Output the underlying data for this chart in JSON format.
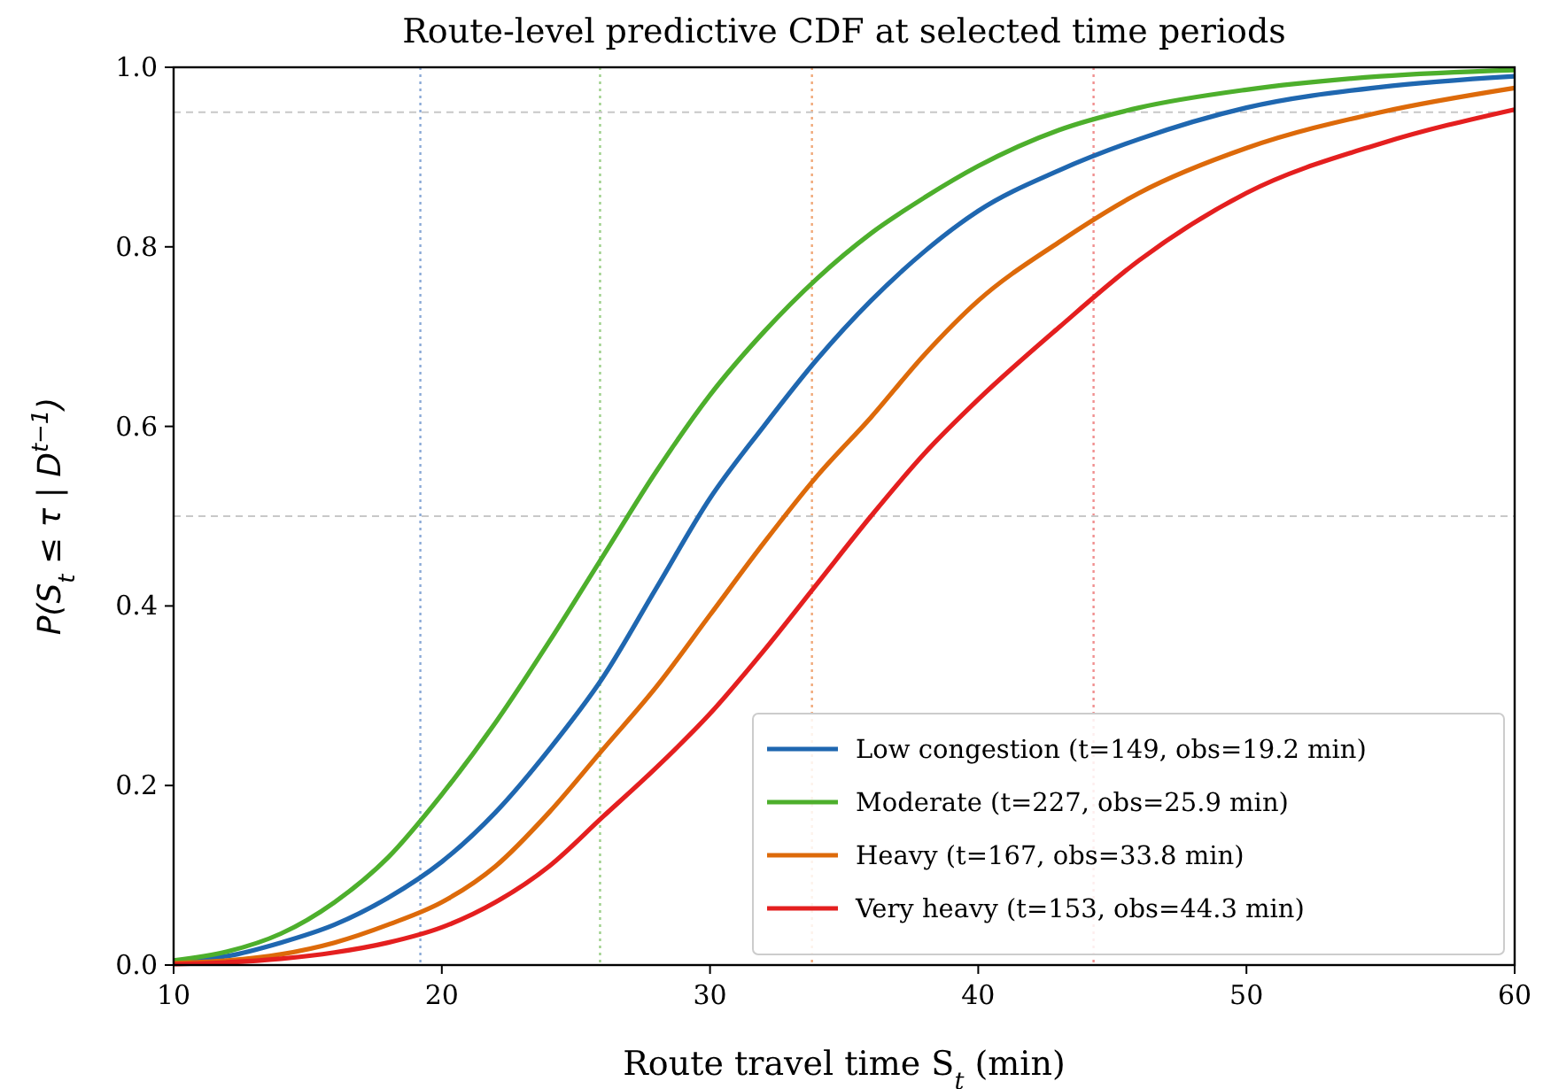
{
  "chart_data": {
    "type": "line",
    "title": "Route-level predictive CDF at selected time periods",
    "xlabel": "Route travel time S$_{t}$ (min)",
    "ylabel": "P(S$_{t}$ ≤ τ | D$^{t−1}$)",
    "xlim": [
      10,
      60
    ],
    "ylim": [
      0,
      1
    ],
    "xticks": [
      10,
      20,
      30,
      40,
      50,
      60
    ],
    "yticks": [
      {
        "value": 0,
        "label": "0.0"
      },
      {
        "value": 0.2,
        "label": "0.2"
      },
      {
        "value": 0.4,
        "label": "0.4"
      },
      {
        "value": 0.6,
        "label": "0.6"
      },
      {
        "value": 0.8,
        "label": "0.8"
      },
      {
        "value": 1,
        "label": "1.0"
      }
    ],
    "x": [
      10,
      12,
      14,
      16,
      18,
      20,
      22,
      24,
      26,
      28,
      30,
      32,
      34,
      36,
      38,
      40,
      43,
      46,
      50,
      55,
      60
    ],
    "series": [
      {
        "name": "Low congestion (t=149, obs=19.2 min)",
        "color": "#1f67b0",
        "values": [
          0.004,
          0.01,
          0.025,
          0.045,
          0.075,
          0.115,
          0.17,
          0.24,
          0.32,
          0.42,
          0.52,
          0.6,
          0.675,
          0.74,
          0.795,
          0.84,
          0.885,
          0.92,
          0.955,
          0.978,
          0.99
        ]
      },
      {
        "name": "Moderate (t=227, obs=25.9 min)",
        "color": "#4daf2c",
        "values": [
          0.005,
          0.015,
          0.035,
          0.07,
          0.12,
          0.19,
          0.27,
          0.36,
          0.455,
          0.55,
          0.635,
          0.705,
          0.765,
          0.815,
          0.855,
          0.89,
          0.93,
          0.955,
          0.975,
          0.99,
          0.997
        ]
      },
      {
        "name": "Heavy (t=167, obs=33.8 min)",
        "color": "#dd6a0a",
        "values": [
          0.002,
          0.005,
          0.012,
          0.025,
          0.045,
          0.07,
          0.11,
          0.17,
          0.24,
          0.31,
          0.39,
          0.47,
          0.545,
          0.61,
          0.68,
          0.74,
          0.805,
          0.86,
          0.91,
          0.95,
          0.977
        ]
      },
      {
        "name": "Very heavy (t=153, obs=44.3 min)",
        "color": "#e41f1f",
        "values": [
          0.001,
          0.003,
          0.007,
          0.014,
          0.025,
          0.042,
          0.07,
          0.11,
          0.165,
          0.22,
          0.28,
          0.35,
          0.425,
          0.5,
          0.57,
          0.63,
          0.71,
          0.785,
          0.86,
          0.915,
          0.953
        ]
      }
    ],
    "ref_lines": [
      {
        "axis": "x",
        "value": 19.2,
        "color": "#8aa9d6",
        "line_style": "dotted"
      },
      {
        "axis": "x",
        "value": 25.9,
        "color": "#9dd08a",
        "line_style": "dotted"
      },
      {
        "axis": "x",
        "value": 33.8,
        "color": "#f0a878",
        "line_style": "dotted"
      },
      {
        "axis": "x",
        "value": 44.3,
        "color": "#f09090",
        "line_style": "dotted"
      },
      {
        "axis": "y",
        "value": 0.95,
        "color": "#c8c8c8",
        "line_style": "dashed"
      },
      {
        "axis": "y",
        "value": 0.5,
        "color": "#c8c8c8",
        "line_style": "dashed"
      }
    ],
    "grid": false,
    "legend": "bottom right",
    "line_style": "solid"
  }
}
